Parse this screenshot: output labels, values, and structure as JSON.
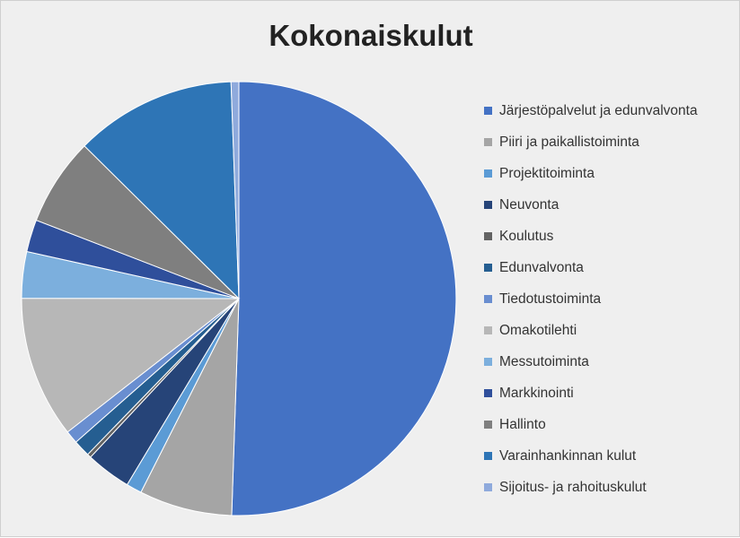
{
  "chart_data": {
    "type": "pie",
    "title": "Kokonaiskulut",
    "legend_position": "right",
    "start_angle_deg": 0,
    "direction": "clockwise",
    "categories": [
      "Järjestöpalvelut ja edunvalvonta",
      "Piiri ja paikallistoiminta",
      "Projektitoiminta",
      "Neuvonta",
      "Koulutus",
      "Edunvalvonta",
      "Tiedotustoiminta",
      "Omakotilehti",
      "Messutoiminta",
      "Markkinointi",
      "Hallinto",
      "Varainhankinnan kulut",
      "Sijoitus- ja rahoituskulut"
    ],
    "values": [
      52.6,
      7.2,
      1.2,
      3.5,
      0.3,
      1.3,
      1.0,
      11.0,
      3.6,
      2.5,
      6.8,
      12.5,
      0.6
    ],
    "colors": [
      "#4472C4",
      "#A5A5A5",
      "#5B9BD5",
      "#264478",
      "#636363",
      "#255E91",
      "#698ED0",
      "#B7B7B7",
      "#7CAFDD",
      "#2F4F9B",
      "#7F7F7F",
      "#2E75B6",
      "#8FAADC"
    ]
  }
}
